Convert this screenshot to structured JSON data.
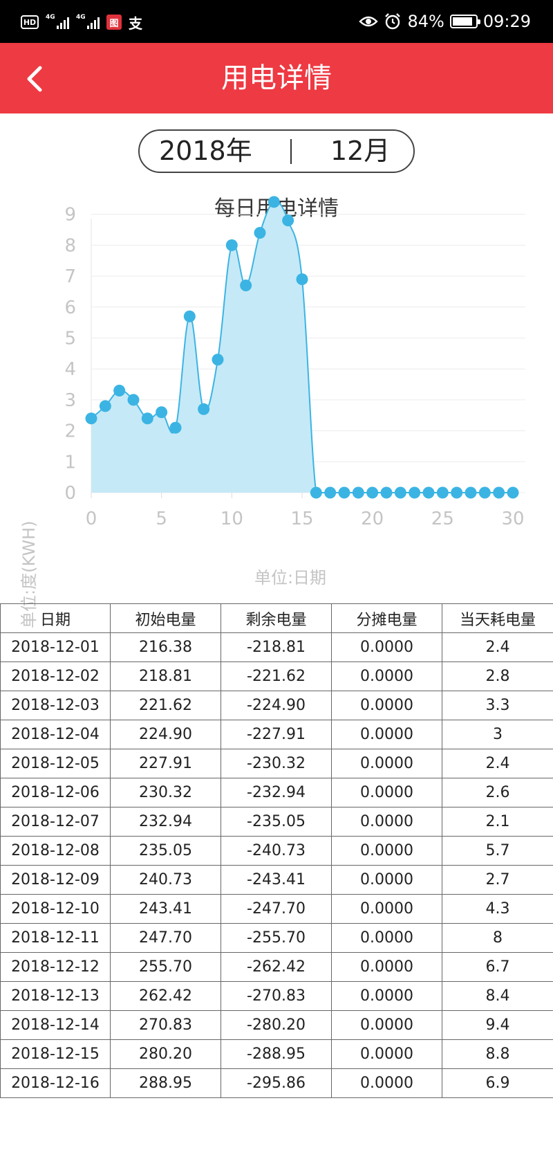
{
  "status_bar": {
    "hd": "HD",
    "sig1": "4G",
    "sig2": "4G",
    "app_icon": "图",
    "pay_icon": "支",
    "battery": "84%",
    "battery_fraction": 0.84,
    "time": "09:29"
  },
  "header": {
    "back_icon": "chevron-left-icon",
    "title": "用电详情",
    "color": "#ee3a43"
  },
  "date_selector": {
    "year": "2018年",
    "separator": "|",
    "month": "12月"
  },
  "chart": {
    "title": "每日用电详情",
    "ylabel": "单位:度(KWH)",
    "xlabel": "单位:日期"
  },
  "chart_data": {
    "type": "area",
    "title": "每日用电详情",
    "xlabel": "单位:日期",
    "ylabel": "单位:度(KWH)",
    "x": [
      0,
      1,
      2,
      3,
      4,
      5,
      6,
      7,
      8,
      9,
      10,
      11,
      12,
      13,
      14,
      15,
      16,
      17,
      18,
      19,
      20,
      21,
      22,
      23,
      24,
      25,
      26,
      27,
      28,
      29,
      30
    ],
    "values": [
      2.4,
      2.8,
      3.3,
      3,
      2.4,
      2.6,
      2.1,
      5.7,
      2.7,
      4.3,
      8,
      6.7,
      8.4,
      9.4,
      8.8,
      6.9,
      0,
      0,
      0,
      0,
      0,
      0,
      0,
      0,
      0,
      0,
      0,
      0,
      0,
      0,
      0
    ],
    "xlim": [
      0,
      30
    ],
    "ylim": [
      0,
      9.5
    ],
    "x_ticks": [
      "0",
      "5",
      "10",
      "15",
      "20",
      "25",
      "30"
    ],
    "y_ticks": [
      "0",
      "1",
      "2",
      "3",
      "4",
      "5",
      "6",
      "7",
      "8",
      "9"
    ],
    "grid": true,
    "line_color": "#3bb4e3",
    "fill_color": "#c6e9f7"
  },
  "table": {
    "headers": [
      "日期",
      "初始电量",
      "剩余电量",
      "分摊电量",
      "当天耗电量"
    ],
    "rows": [
      [
        "2018-12-01",
        "216.38",
        "-218.81",
        "0.0000",
        "2.4"
      ],
      [
        "2018-12-02",
        "218.81",
        "-221.62",
        "0.0000",
        "2.8"
      ],
      [
        "2018-12-03",
        "221.62",
        "-224.90",
        "0.0000",
        "3.3"
      ],
      [
        "2018-12-04",
        "224.90",
        "-227.91",
        "0.0000",
        "3"
      ],
      [
        "2018-12-05",
        "227.91",
        "-230.32",
        "0.0000",
        "2.4"
      ],
      [
        "2018-12-06",
        "230.32",
        "-232.94",
        "0.0000",
        "2.6"
      ],
      [
        "2018-12-07",
        "232.94",
        "-235.05",
        "0.0000",
        "2.1"
      ],
      [
        "2018-12-08",
        "235.05",
        "-240.73",
        "0.0000",
        "5.7"
      ],
      [
        "2018-12-09",
        "240.73",
        "-243.41",
        "0.0000",
        "2.7"
      ],
      [
        "2018-12-10",
        "243.41",
        "-247.70",
        "0.0000",
        "4.3"
      ],
      [
        "2018-12-11",
        "247.70",
        "-255.70",
        "0.0000",
        "8"
      ],
      [
        "2018-12-12",
        "255.70",
        "-262.42",
        "0.0000",
        "6.7"
      ],
      [
        "2018-12-13",
        "262.42",
        "-270.83",
        "0.0000",
        "8.4"
      ],
      [
        "2018-12-14",
        "270.83",
        "-280.20",
        "0.0000",
        "9.4"
      ],
      [
        "2018-12-15",
        "280.20",
        "-288.95",
        "0.0000",
        "8.8"
      ],
      [
        "2018-12-16",
        "288.95",
        "-295.86",
        "0.0000",
        "6.9"
      ]
    ]
  }
}
